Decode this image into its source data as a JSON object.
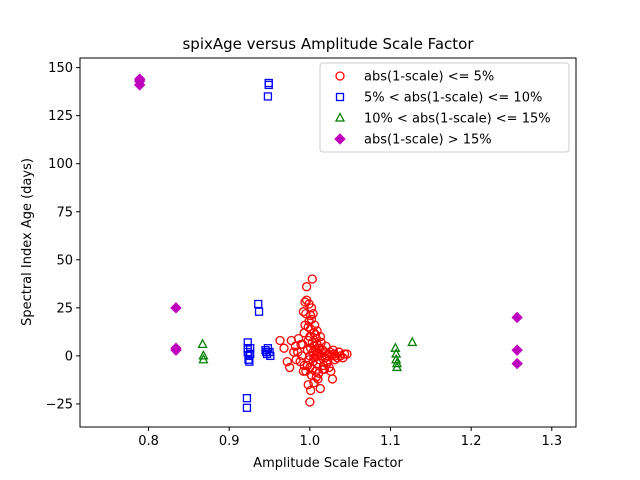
{
  "chart_data": {
    "type": "scatter",
    "title": "spixAge versus Amplitude Scale Factor",
    "xlabel": "Amplitude Scale Factor",
    "ylabel": "Spectral Index Age (days)",
    "xlim": [
      0.715,
      1.33
    ],
    "ylim": [
      -37,
      155
    ],
    "xticks": [
      0.8,
      0.9,
      1.0,
      1.1,
      1.2,
      1.3
    ],
    "xtick_labels": [
      "0.8",
      "0.9",
      "1.0",
      "1.1",
      "1.2",
      "1.3"
    ],
    "yticks": [
      -25,
      0,
      25,
      50,
      75,
      100,
      125,
      150
    ],
    "ytick_labels": [
      "−25",
      "0",
      "25",
      "50",
      "75",
      "100",
      "125",
      "150"
    ],
    "grid": false,
    "legend_position": "top-right",
    "series": [
      {
        "name": "abs(1-scale) <= 5%",
        "marker": "circle-open",
        "color": "#ff0000",
        "points": [
          [
            0.977,
            8
          ],
          [
            0.982,
            5
          ],
          [
            0.985,
            2
          ],
          [
            0.988,
            -3
          ],
          [
            0.99,
            0
          ],
          [
            0.991,
            6
          ],
          [
            0.992,
            -8
          ],
          [
            0.993,
            12
          ],
          [
            0.994,
            28
          ],
          [
            0.995,
            22
          ],
          [
            0.996,
            29
          ],
          [
            0.997,
            3
          ],
          [
            0.997,
            -5
          ],
          [
            0.998,
            15
          ],
          [
            0.998,
            8
          ],
          [
            0.999,
            -2
          ],
          [
            0.999,
            18
          ],
          [
            1.0,
            10
          ],
          [
            1.0,
            0
          ],
          [
            1.0,
            -6
          ],
          [
            1.001,
            14
          ],
          [
            1.001,
            4
          ],
          [
            1.002,
            19
          ],
          [
            1.002,
            -10
          ],
          [
            1.003,
            40
          ],
          [
            1.003,
            7
          ],
          [
            1.004,
            2
          ],
          [
            1.004,
            -3
          ],
          [
            1.005,
            12
          ],
          [
            1.005,
            -1
          ],
          [
            1.006,
            5
          ],
          [
            1.006,
            16
          ],
          [
            1.007,
            -8
          ],
          [
            1.007,
            3
          ],
          [
            1.008,
            0
          ],
          [
            1.008,
            9
          ],
          [
            1.009,
            -4
          ],
          [
            1.009,
            6
          ],
          [
            1.01,
            2
          ],
          [
            1.01,
            -12
          ],
          [
            1.011,
            1
          ],
          [
            1.012,
            -2
          ],
          [
            1.012,
            4
          ],
          [
            1.013,
            -17
          ],
          [
            1.014,
            7
          ],
          [
            1.015,
            0
          ],
          [
            1.016,
            3
          ],
          [
            1.017,
            -5
          ],
          [
            1.018,
            2
          ],
          [
            1.019,
            -1
          ],
          [
            1.02,
            5
          ],
          [
            1.021,
            0
          ],
          [
            1.022,
            -3
          ],
          [
            1.023,
            1
          ],
          [
            1.024,
            -6
          ],
          [
            1.025,
            2
          ],
          [
            1.026,
            -8
          ],
          [
            1.027,
            0
          ],
          [
            1.028,
            -12
          ],
          [
            1.029,
            3
          ],
          [
            1.03,
            1
          ],
          [
            1.031,
            -2
          ],
          [
            1.032,
            0
          ],
          [
            1.034,
            -1
          ],
          [
            1.036,
            2
          ],
          [
            1.038,
            0
          ],
          [
            1.041,
            -1
          ],
          [
            1.043,
            1
          ],
          [
            1.046,
            1
          ],
          [
            0.975,
            -6
          ],
          [
            0.98,
            2
          ],
          [
            0.983,
            -2
          ],
          [
            0.986,
            9
          ],
          [
            0.989,
            6
          ],
          [
            0.993,
            -5
          ],
          [
            0.994,
            16
          ],
          [
            0.995,
            -8
          ],
          [
            0.996,
            36
          ],
          [
            0.998,
            -15
          ],
          [
            1.0,
            -24
          ],
          [
            1.001,
            -18
          ],
          [
            1.002,
            -10
          ],
          [
            1.003,
            -7
          ],
          [
            1.005,
            -14
          ],
          [
            1.008,
            -11
          ],
          [
            1.011,
            -9
          ],
          [
            1.018,
            -7
          ],
          [
            0.963,
            8
          ],
          [
            0.968,
            4
          ],
          [
            0.972,
            -3
          ],
          [
            0.992,
            23
          ],
          [
            0.999,
            27
          ],
          [
            1.001,
            21
          ],
          [
            1.002,
            25
          ],
          [
            1.004,
            22
          ],
          [
            1.007,
            11
          ],
          [
            1.009,
            13
          ],
          [
            1.013,
            10
          ],
          [
            1.016,
            -7
          ],
          [
            1.021,
            -4
          ]
        ]
      },
      {
        "name": "5% < abs(1-scale) <= 10%",
        "marker": "square-open",
        "color": "#0000ff",
        "points": [
          [
            0.922,
            -22
          ],
          [
            0.922,
            -27
          ],
          [
            0.923,
            7
          ],
          [
            0.923,
            4
          ],
          [
            0.923,
            2
          ],
          [
            0.924,
            0
          ],
          [
            0.924,
            -2
          ],
          [
            0.925,
            -3
          ],
          [
            0.926,
            4
          ],
          [
            0.926,
            1
          ],
          [
            0.936,
            27
          ],
          [
            0.937,
            23
          ],
          [
            0.945,
            3
          ],
          [
            0.946,
            2
          ],
          [
            0.947,
            1
          ],
          [
            0.948,
            4
          ],
          [
            0.948,
            135
          ],
          [
            0.949,
            141
          ],
          [
            0.949,
            142
          ],
          [
            0.95,
            2
          ],
          [
            0.951,
            0
          ]
        ]
      },
      {
        "name": "10% < abs(1-scale) <= 15%",
        "marker": "triangle-open",
        "color": "#008000",
        "points": [
          [
            0.867,
            6
          ],
          [
            0.868,
            0
          ],
          [
            0.868,
            -2
          ],
          [
            1.106,
            4
          ],
          [
            1.107,
            1
          ],
          [
            1.107,
            -2
          ],
          [
            1.108,
            -4
          ],
          [
            1.108,
            -6
          ],
          [
            1.127,
            7
          ]
        ]
      },
      {
        "name": "abs(1-scale) > 15%",
        "marker": "diamond-filled",
        "color": "#bf00bf",
        "points": [
          [
            0.789,
            143
          ],
          [
            0.789,
            141
          ],
          [
            0.789,
            144
          ],
          [
            0.834,
            25
          ],
          [
            0.834,
            4
          ],
          [
            0.834,
            3
          ],
          [
            1.257,
            20
          ],
          [
            1.257,
            3
          ],
          [
            1.257,
            -4
          ]
        ]
      }
    ]
  }
}
